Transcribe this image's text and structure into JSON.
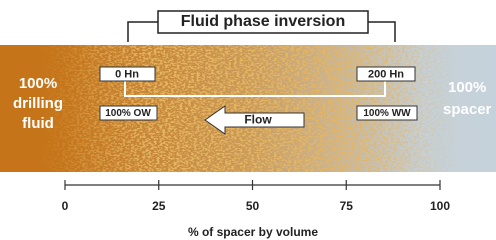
{
  "title": "Fluid phase inversion",
  "left_label": [
    "100%",
    "drilling",
    "fluid"
  ],
  "right_label": [
    "100%",
    "spacer"
  ],
  "markers": [
    {
      "top": "0 Hn",
      "bottom": "100% OW"
    },
    {
      "top": "200 Hn",
      "bottom": "100% WW"
    }
  ],
  "flow": "Flow",
  "axis": {
    "ticks": [
      0,
      25,
      50,
      75,
      100
    ],
    "label": "% of spacer by volume"
  }
}
